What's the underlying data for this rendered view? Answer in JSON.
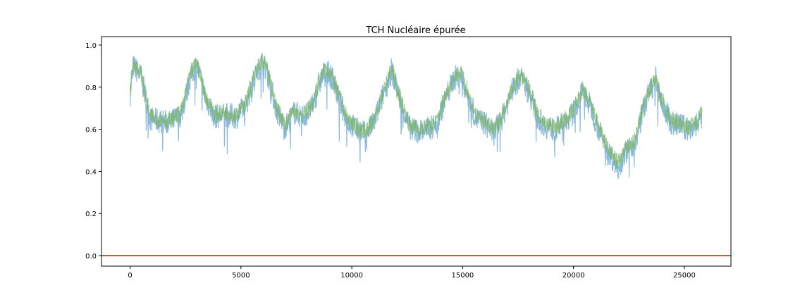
{
  "chart_data": {
    "type": "line",
    "title": "TCH Nucléaire épurée",
    "xlabel": "",
    "ylabel": "",
    "xlim": [
      -1290,
      27100
    ],
    "ylim": [
      -0.05,
      1.04
    ],
    "xticks": [
      0,
      5000,
      10000,
      15000,
      20000,
      25000
    ],
    "xtick_labels": [
      "0",
      "5000",
      "10000",
      "15000",
      "20000",
      "25000"
    ],
    "yticks": [
      0.0,
      0.2,
      0.4,
      0.6,
      0.8,
      1.0
    ],
    "ytick_labels": [
      "0.0",
      "0.2",
      "0.4",
      "0.6",
      "0.8",
      "1.0"
    ],
    "grid": false,
    "legend": "none",
    "horizontal_line": {
      "y": 0.0,
      "color": "#e8372b"
    },
    "series": [
      {
        "color": "#5b9ccc",
        "alpha": 0.7,
        "x": [
          0,
          150,
          500,
          900,
          1300,
          1800,
          2300,
          2700,
          3000,
          3400,
          3800,
          4300,
          4800,
          5200,
          5600,
          5950,
          6200,
          6600,
          7000,
          7400,
          7800,
          8200,
          8500,
          8800,
          9100,
          9400,
          9800,
          10200,
          10600,
          11000,
          11400,
          11800,
          12200,
          12600,
          13000,
          13400,
          13800,
          14200,
          14600,
          14900,
          15200,
          15600,
          16000,
          16400,
          16800,
          17200,
          17600,
          18000,
          18400,
          18800,
          19200,
          19600,
          20000,
          20400,
          20800,
          21200,
          21600,
          22000,
          22400,
          22800,
          23100,
          23400,
          23700,
          24000,
          24400,
          24800,
          25200,
          25600,
          25800
        ],
        "y": [
          0.77,
          0.9,
          0.85,
          0.65,
          0.64,
          0.63,
          0.67,
          0.84,
          0.91,
          0.75,
          0.66,
          0.67,
          0.66,
          0.71,
          0.84,
          0.92,
          0.87,
          0.69,
          0.61,
          0.68,
          0.66,
          0.7,
          0.81,
          0.88,
          0.85,
          0.75,
          0.64,
          0.6,
          0.58,
          0.63,
          0.76,
          0.88,
          0.73,
          0.61,
          0.59,
          0.6,
          0.62,
          0.74,
          0.84,
          0.86,
          0.77,
          0.65,
          0.63,
          0.58,
          0.66,
          0.78,
          0.85,
          0.78,
          0.65,
          0.61,
          0.6,
          0.63,
          0.68,
          0.78,
          0.7,
          0.58,
          0.49,
          0.42,
          0.5,
          0.54,
          0.68,
          0.77,
          0.84,
          0.72,
          0.63,
          0.62,
          0.6,
          0.63,
          0.65
        ],
        "noise": 0.06
      },
      {
        "color": "#7ab55c",
        "alpha": 0.7,
        "x": [
          0,
          150,
          500,
          900,
          1300,
          1800,
          2300,
          2700,
          3000,
          3400,
          3800,
          4300,
          4800,
          5200,
          5600,
          5950,
          6200,
          6600,
          7000,
          7400,
          7800,
          8200,
          8500,
          8800,
          9100,
          9400,
          9800,
          10200,
          10600,
          11000,
          11400,
          11800,
          12200,
          12600,
          13000,
          13400,
          13800,
          14200,
          14600,
          14900,
          15200,
          15600,
          16000,
          16400,
          16800,
          17200,
          17600,
          18000,
          18400,
          18800,
          19200,
          19600,
          20000,
          20400,
          20800,
          21200,
          21600,
          22000,
          22400,
          22800,
          23100,
          23400,
          23700,
          24000,
          24400,
          24800,
          25200,
          25600,
          25800
        ],
        "y": [
          0.78,
          0.92,
          0.86,
          0.66,
          0.65,
          0.64,
          0.68,
          0.85,
          0.92,
          0.76,
          0.67,
          0.68,
          0.67,
          0.72,
          0.85,
          0.93,
          0.88,
          0.7,
          0.62,
          0.69,
          0.67,
          0.71,
          0.82,
          0.89,
          0.86,
          0.76,
          0.65,
          0.61,
          0.59,
          0.64,
          0.77,
          0.89,
          0.74,
          0.62,
          0.6,
          0.61,
          0.63,
          0.75,
          0.85,
          0.87,
          0.78,
          0.66,
          0.64,
          0.59,
          0.67,
          0.79,
          0.86,
          0.79,
          0.66,
          0.62,
          0.61,
          0.64,
          0.69,
          0.79,
          0.71,
          0.59,
          0.5,
          0.44,
          0.51,
          0.55,
          0.69,
          0.78,
          0.85,
          0.73,
          0.64,
          0.63,
          0.61,
          0.64,
          0.7
        ],
        "noise": 0.04
      }
    ]
  }
}
